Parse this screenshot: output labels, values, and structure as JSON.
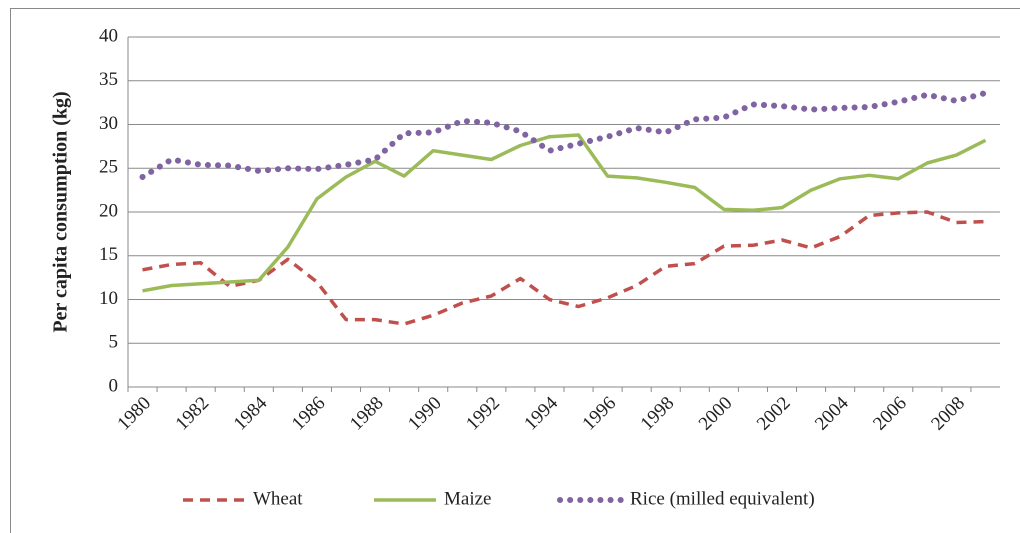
{
  "chart_data": {
    "type": "line",
    "y_label": "Per capita consumption (kg)",
    "categories": [
      "1980",
      null,
      "1982",
      null,
      "1984",
      null,
      "1986",
      null,
      "1988",
      null,
      "1990",
      null,
      "1992",
      null,
      "1994",
      null,
      "1996",
      null,
      "1998",
      null,
      "2000",
      null,
      "2002",
      null,
      "2004",
      null,
      "2006",
      null,
      "2008",
      null
    ],
    "series": [
      {
        "name": "Wheat",
        "color": "#c0504d",
        "dash": "dashed",
        "values": [
          13.4,
          14,
          14.2,
          11.5,
          12.2,
          14.6,
          12,
          7.7,
          7.7,
          7.2,
          8.2,
          9.6,
          10.4,
          12.4,
          10,
          9.2,
          10.2,
          11.6,
          13.8,
          14.1,
          16.1,
          16.2,
          16.8,
          15.9,
          17.2,
          19.6,
          19.9,
          20,
          18.8,
          18.9
        ]
      },
      {
        "name": "Maize",
        "color": "#9bbb59",
        "dash": "solid",
        "values": [
          11,
          11.6,
          11.8,
          12,
          12.2,
          16,
          21.5,
          24,
          25.8,
          24.1,
          27,
          26.5,
          26,
          27.6,
          28.6,
          28.8,
          24.1,
          23.9,
          23.4,
          22.8,
          20.3,
          20.2,
          20.5,
          22.5,
          23.8,
          24.2,
          23.8,
          25.6,
          26.5,
          28.2
        ]
      },
      {
        "name": "Rice (milled equivalent)",
        "color": "#8064a2",
        "dash": "dotted",
        "values": [
          24,
          26,
          25.4,
          25.3,
          24.7,
          25,
          24.9,
          25.4,
          26,
          29,
          29.1,
          30.4,
          30.2,
          29.2,
          27,
          27.8,
          28.6,
          29.6,
          29.1,
          30.6,
          30.8,
          32.3,
          32.1,
          31.7,
          31.9,
          32,
          32.6,
          33.4,
          32.7,
          33.6
        ]
      }
    ],
    "ylim": [
      0,
      40
    ],
    "yticks": [
      0,
      5,
      10,
      15,
      20,
      25,
      30,
      35,
      40
    ],
    "grid": true,
    "legend": "bottom"
  }
}
